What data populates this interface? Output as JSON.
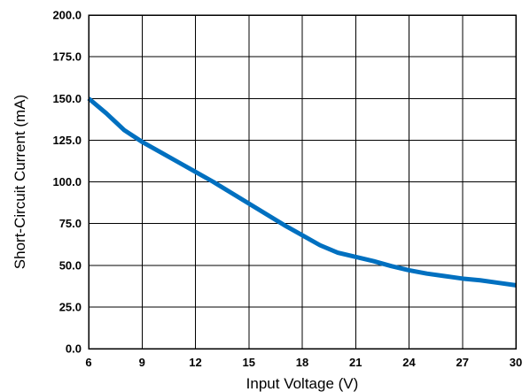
{
  "chart_data": {
    "type": "line",
    "title": "",
    "xlabel": "Input Voltage (V)",
    "ylabel": "Short-Circuit Current (mA)",
    "xlim": [
      6,
      30
    ],
    "ylim": [
      0,
      200
    ],
    "grid": true,
    "x_ticks": [
      "6",
      "9",
      "12",
      "15",
      "18",
      "21",
      "24",
      "27",
      "30"
    ],
    "y_ticks": [
      "0.0",
      "25.0",
      "50.0",
      "75.0",
      "100.0",
      "125.0",
      "150.0",
      "175.0",
      "200.0"
    ],
    "series": [
      {
        "color": "#0070c0",
        "x": [
          6,
          7,
          8,
          9,
          10,
          11,
          12,
          13,
          14,
          15,
          16,
          17,
          18,
          19,
          20,
          21,
          22,
          23,
          24,
          25,
          26,
          27,
          28,
          29,
          30
        ],
        "y": [
          150,
          141,
          131,
          124,
          118,
          112,
          106,
          100,
          93.5,
          87,
          80.5,
          74,
          68,
          62,
          57.5,
          55,
          52.5,
          49.5,
          47,
          45,
          43.5,
          42,
          41,
          39.5,
          38
        ]
      }
    ]
  }
}
